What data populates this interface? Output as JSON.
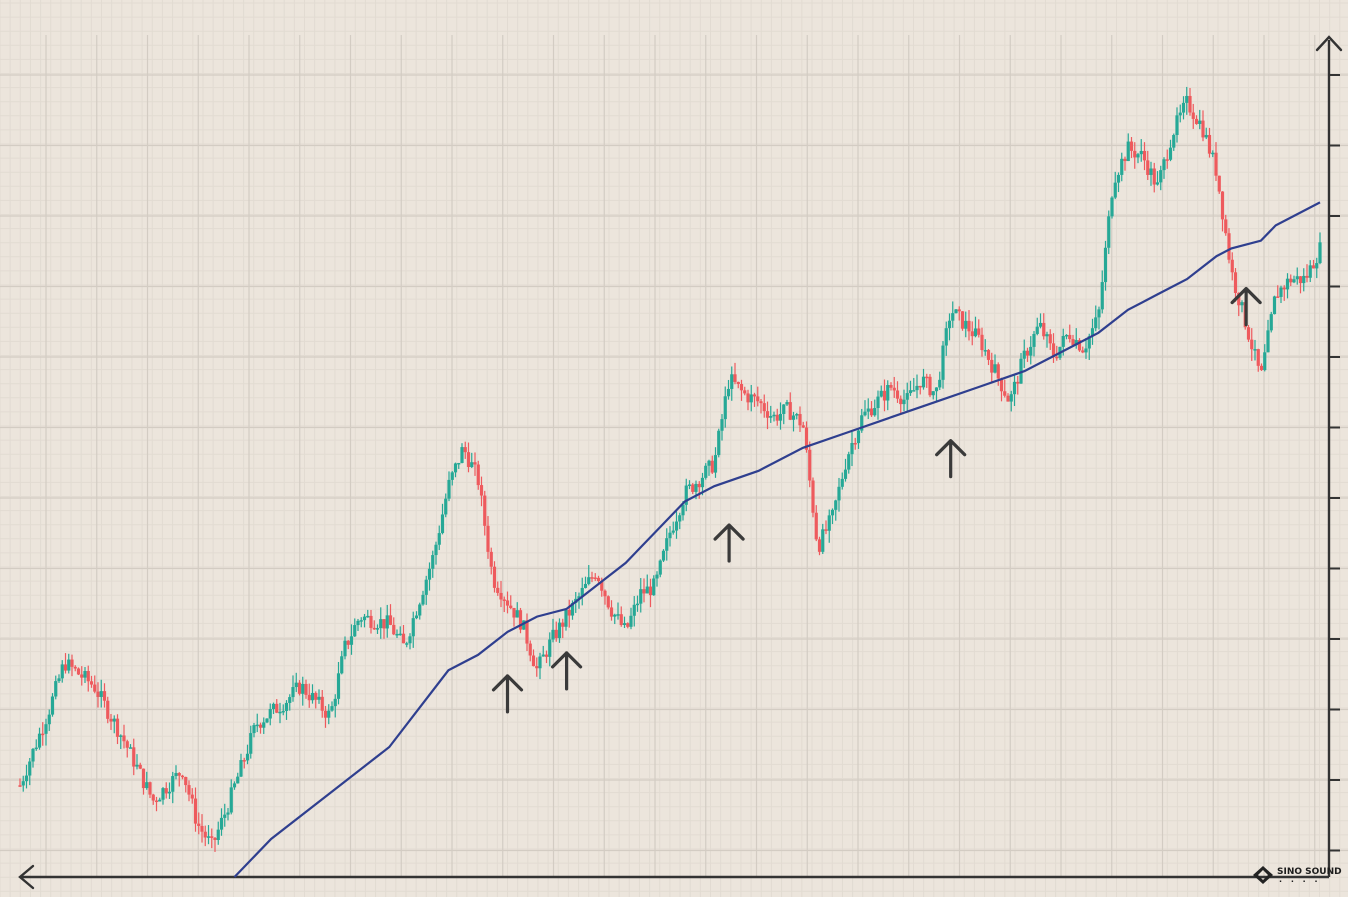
{
  "chart_data": {
    "type": "candlestick",
    "title": "",
    "xlabel": "",
    "ylabel": "",
    "ylim": [
      0,
      100
    ],
    "grid": true,
    "tick_labels_shown": false,
    "colors": {
      "up": "#26a896",
      "down": "#ee5a5d",
      "moving_average": "#2f3f8f",
      "grid": "#d3ccc3",
      "axis": "#333333",
      "arrow": "#3a3a3a",
      "background": "#ece5dc"
    },
    "price_path": [
      [
        0,
        10
      ],
      [
        2,
        20
      ],
      [
        3,
        26
      ],
      [
        5,
        23
      ],
      [
        7,
        16
      ],
      [
        9,
        8
      ],
      [
        11,
        12
      ],
      [
        12,
        5
      ],
      [
        13,
        2
      ],
      [
        14,
        7
      ],
      [
        16,
        18
      ],
      [
        18,
        21
      ],
      [
        19,
        23
      ],
      [
        21,
        19
      ],
      [
        22,
        28
      ],
      [
        23,
        32
      ],
      [
        25,
        31
      ],
      [
        26,
        28
      ],
      [
        28,
        40
      ],
      [
        29,
        49
      ],
      [
        30,
        54
      ],
      [
        31,
        50
      ],
      [
        32,
        37
      ],
      [
        33,
        34
      ],
      [
        34,
        31
      ],
      [
        35,
        25
      ],
      [
        36,
        29
      ],
      [
        37,
        32
      ],
      [
        38,
        35
      ],
      [
        39,
        38
      ],
      [
        40,
        33
      ],
      [
        41,
        30
      ],
      [
        42,
        35
      ],
      [
        43,
        36
      ],
      [
        44,
        43
      ],
      [
        45,
        48
      ],
      [
        46,
        50
      ],
      [
        47,
        52
      ],
      [
        48,
        63
      ],
      [
        49,
        61
      ],
      [
        50,
        60
      ],
      [
        51,
        58
      ],
      [
        52,
        59
      ],
      [
        53,
        57
      ],
      [
        54,
        41
      ],
      [
        55,
        45
      ],
      [
        56,
        53
      ],
      [
        57,
        58
      ],
      [
        58,
        60
      ],
      [
        59,
        62
      ],
      [
        60,
        60
      ],
      [
        61,
        63
      ],
      [
        62,
        61
      ],
      [
        63,
        72
      ],
      [
        64,
        70
      ],
      [
        65,
        68
      ],
      [
        66,
        64
      ],
      [
        67,
        60
      ],
      [
        68,
        66
      ],
      [
        69,
        70
      ],
      [
        70,
        66
      ],
      [
        71,
        69
      ],
      [
        72,
        67
      ],
      [
        73,
        71
      ],
      [
        74,
        89
      ],
      [
        75,
        93
      ],
      [
        76,
        92
      ],
      [
        77,
        88
      ],
      [
        78,
        95
      ],
      [
        79,
        99
      ],
      [
        80,
        96
      ],
      [
        81,
        90
      ],
      [
        82,
        77
      ],
      [
        83,
        70
      ],
      [
        84,
        63
      ],
      [
        85,
        74
      ],
      [
        86,
        76
      ],
      [
        87,
        76
      ],
      [
        88,
        80
      ]
    ],
    "moving_average": [
      [
        13,
        -5
      ],
      [
        17,
        3
      ],
      [
        21,
        9
      ],
      [
        25,
        15
      ],
      [
        27,
        20
      ],
      [
        29,
        25
      ],
      [
        31,
        27
      ],
      [
        33,
        30
      ],
      [
        35,
        32
      ],
      [
        37,
        33
      ],
      [
        39,
        36
      ],
      [
        41,
        39
      ],
      [
        43,
        43
      ],
      [
        45,
        47
      ],
      [
        47,
        49
      ],
      [
        50,
        51
      ],
      [
        53,
        54
      ],
      [
        56,
        56
      ],
      [
        59,
        58
      ],
      [
        62,
        60
      ],
      [
        65,
        62
      ],
      [
        68,
        64
      ],
      [
        71,
        67
      ],
      [
        73,
        69
      ],
      [
        75,
        72
      ],
      [
        77,
        74
      ],
      [
        79,
        76
      ],
      [
        81,
        79
      ],
      [
        82,
        80
      ],
      [
        84,
        81
      ],
      [
        85,
        83
      ],
      [
        88,
        86
      ]
    ],
    "support_arrows_at": [
      33,
      37,
      48,
      63,
      83
    ]
  },
  "watermark": {
    "brand": "SINO SOUND",
    "subtitle": "· · · ·"
  }
}
